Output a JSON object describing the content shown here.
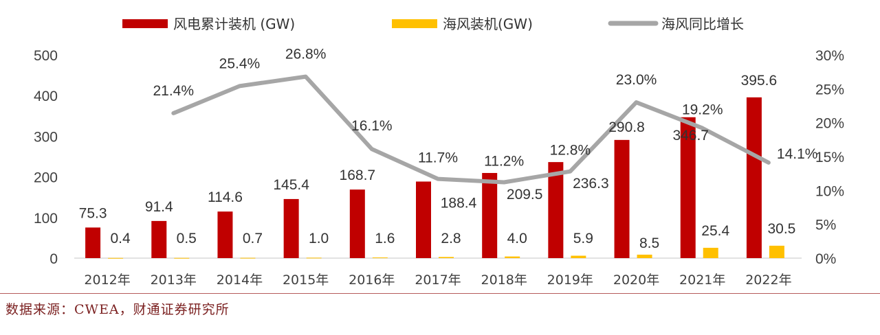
{
  "colors": {
    "bar_primary": "#C00000",
    "bar_secondary": "#FFC000",
    "line": "#A6A6A6",
    "source_text": "#7A1F1F"
  },
  "legend": {
    "item1": "风电累计装机 (GW)",
    "item2": "海风装机(GW)",
    "item3": "海风同比增长"
  },
  "source": "数据来源：CWEA，财通证券研究所",
  "chart_data": {
    "type": "bar",
    "categories": [
      "2012年",
      "2013年",
      "2014年",
      "2015年",
      "2016年",
      "2017年",
      "2018年",
      "2019年",
      "2020年",
      "2021年",
      "2022年"
    ],
    "series": [
      {
        "name": "风电累计装机 (GW)",
        "type": "bar",
        "axis": "left",
        "values": [
          75.3,
          91.4,
          114.6,
          145.4,
          168.7,
          188.4,
          209.5,
          236.3,
          290.8,
          346.7,
          395.6
        ],
        "labels": [
          "75.3",
          "91.4",
          "114.6",
          "145.4",
          "168.7",
          "188.4",
          "209.5",
          "236.3",
          "290.8",
          "346.7",
          "395.6"
        ]
      },
      {
        "name": "海风装机(GW)",
        "type": "bar",
        "axis": "left",
        "values": [
          0.4,
          0.5,
          0.7,
          1.0,
          1.6,
          2.8,
          4.0,
          5.9,
          8.5,
          25.4,
          30.5
        ],
        "labels": [
          "0.4",
          "0.5",
          "0.7",
          "1.0",
          "1.6",
          "2.8",
          "4.0",
          "5.9",
          "8.5",
          "25.4",
          "30.5"
        ]
      },
      {
        "name": "海风同比增长",
        "type": "line",
        "axis": "right",
        "values": [
          null,
          21.4,
          25.4,
          26.8,
          16.1,
          11.7,
          11.2,
          12.8,
          23.0,
          19.2,
          14.1
        ],
        "labels": [
          "",
          "21.4%",
          "25.4%",
          "26.8%",
          "16.1%",
          "11.7%",
          "11.2%",
          "12.8%",
          "23.0%",
          "19.2%",
          "14.1%"
        ]
      }
    ],
    "left_axis": {
      "ticks": [
        "0",
        "100",
        "200",
        "300",
        "400",
        "500"
      ],
      "range": [
        0,
        500
      ]
    },
    "right_axis": {
      "ticks": [
        "0%",
        "5%",
        "10%",
        "15%",
        "20%",
        "25%",
        "30%"
      ],
      "range": [
        0,
        30
      ]
    },
    "legend_position": "top",
    "grid": false
  }
}
